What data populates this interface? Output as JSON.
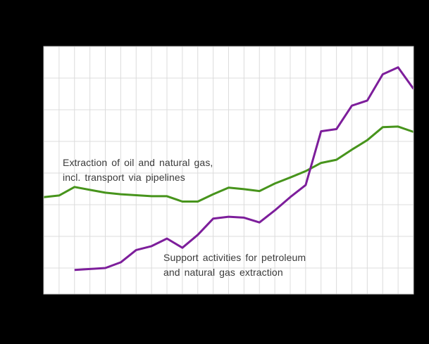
{
  "page": {
    "background_color": "#000000",
    "plot_background_color": "#ffffff",
    "gridline_color": "#dcdcdc",
    "plot_border_color": "#c8c8c8",
    "annotation_text_color": "#3a3a3a"
  },
  "annotations": {
    "extraction": {
      "line1": "Extraction of oil and natural gas,",
      "line2": "incl. transport via pipelines"
    },
    "support": {
      "line1": "Support activities for petroleum",
      "line2": "and natural gas extraction"
    }
  },
  "chart_data": {
    "type": "line",
    "title": "",
    "x_axis": {
      "tick_labels_visible": false,
      "gridline_positions": 25,
      "point_indices": [
        0,
        1,
        2,
        3,
        4,
        5,
        6,
        7,
        8,
        9,
        10,
        11,
        12,
        13,
        14,
        15,
        16,
        17,
        18,
        19,
        20,
        21,
        22,
        23,
        24
      ]
    },
    "y_axis": {
      "tick_labels_visible": false,
      "visible_gridline_rows": 8,
      "units": "gridline units above lowest horizontal gridline"
    },
    "legend_position": "none (in-plot text annotations)",
    "grid": true,
    "series": [
      {
        "name": "Extraction of oil and natural gas, incl. transport via pipelines",
        "color": "#47941c",
        "start_index": 0,
        "values": [
          2.24,
          2.29,
          2.56,
          2.47,
          2.38,
          2.33,
          2.3,
          2.27,
          2.27,
          2.1,
          2.1,
          2.33,
          2.54,
          2.49,
          2.43,
          2.67,
          2.86,
          3.06,
          3.32,
          3.42,
          3.74,
          4.04,
          4.45,
          4.47,
          4.3
        ]
      },
      {
        "name": "Support activities for petroleum and natural gas extraction",
        "color": "#7d1e9b",
        "start_index": 2,
        "values": [
          -0.06,
          -0.03,
          0.0,
          0.18,
          0.57,
          0.69,
          0.93,
          0.64,
          1.05,
          1.56,
          1.62,
          1.59,
          1.44,
          1.82,
          2.24,
          2.62,
          4.32,
          4.39,
          5.13,
          5.29,
          6.12,
          6.34,
          5.66
        ]
      }
    ]
  }
}
